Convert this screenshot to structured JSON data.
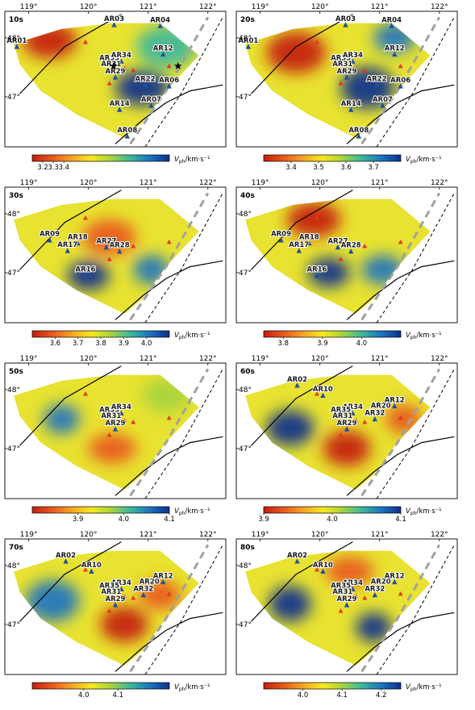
{
  "figure": {
    "lon_ticks": [
      "119°",
      "120°",
      "121°",
      "122°"
    ],
    "lat_ticks": [
      "48°",
      "47°"
    ],
    "colorbar_units": {
      "symbol": "V",
      "subscript": "ph",
      "unit": "/km·s⁻¹"
    }
  },
  "stations": {
    "AR01": [
      118.8,
      47.85
    ],
    "AR02": [
      119.62,
      48.07
    ],
    "AR03": [
      120.43,
      48.22
    ],
    "AR04": [
      121.2,
      48.2
    ],
    "AR06": [
      121.35,
      47.18
    ],
    "AR07": [
      121.05,
      46.85
    ],
    "AR08": [
      120.65,
      46.33
    ],
    "AR09": [
      119.35,
      47.55
    ],
    "AR10": [
      120.05,
      47.9
    ],
    "AR12": [
      121.25,
      47.72
    ],
    "AR14": [
      120.52,
      46.78
    ],
    "AR16": [
      119.95,
      46.95
    ],
    "AR17": [
      119.65,
      47.37
    ],
    "AR18": [
      119.82,
      47.5
    ],
    "AR20": [
      121.02,
      47.62
    ],
    "AR22": [
      120.95,
      47.2
    ],
    "AR27": [
      120.3,
      47.43
    ],
    "AR28": [
      120.52,
      47.36
    ],
    "AR29": [
      120.45,
      47.33
    ],
    "AR31": [
      120.38,
      47.45
    ],
    "AR32": [
      120.92,
      47.5
    ],
    "AR34": [
      120.55,
      47.6
    ],
    "AR35": [
      120.35,
      47.55
    ]
  },
  "event_triangles": [
    [
      119.95,
      47.93
    ],
    [
      120.75,
      47.45
    ],
    [
      121.35,
      47.52
    ],
    [
      120.6,
      47.48
    ],
    [
      120.35,
      47.23
    ]
  ],
  "chart_data": [
    {
      "type": "heatmap",
      "title": "10s",
      "stations": [
        "AR01",
        "AR03",
        "AR04",
        "AR35",
        "AR34",
        "AR12",
        "AR31",
        "AR29",
        "AR22",
        "AR06",
        "AR14",
        "AR07",
        "AR08"
      ],
      "stars": [
        [
          120.42,
          47.52
        ],
        [
          121.5,
          47.52
        ]
      ],
      "colorbar": {
        "min": 3.1,
        "max": 4.4,
        "ticks": [
          "3.2",
          "3.3",
          "3.4"
        ]
      },
      "anomalies": [
        [
          119.35,
          47.95,
          0.0,
          0.45,
          0.3
        ],
        [
          120.9,
          47.15,
          1.0,
          0.45,
          0.3
        ],
        [
          121.3,
          47.85,
          0.75,
          0.5,
          0.35
        ]
      ]
    },
    {
      "type": "heatmap",
      "title": "20s",
      "stations": [
        "AR01",
        "AR03",
        "AR04",
        "AR35",
        "AR34",
        "AR12",
        "AR31",
        "AR29",
        "AR22",
        "AR06",
        "AR14",
        "AR07",
        "AR08"
      ],
      "stars": [],
      "colorbar": {
        "min": 3.3,
        "max": 3.8,
        "ticks": [
          "3.4",
          "3.5",
          "3.6",
          "3.7"
        ]
      },
      "anomalies": [
        [
          119.6,
          47.75,
          0.0,
          0.5,
          0.35
        ],
        [
          120.8,
          47.15,
          1.0,
          0.45,
          0.35
        ],
        [
          121.25,
          48.0,
          0.85,
          0.35,
          0.25
        ]
      ]
    },
    {
      "type": "heatmap",
      "title": "30s",
      "stations": [
        "AR09",
        "AR18",
        "AR17",
        "AR27",
        "AR28",
        "AR16"
      ],
      "stars": [],
      "colorbar": {
        "min": 3.5,
        "max": 4.1,
        "ticks": [
          "3.6",
          "3.7",
          "3.8",
          "3.9",
          "4.0"
        ]
      },
      "anomalies": [
        [
          120.35,
          47.6,
          0.1,
          0.45,
          0.3
        ],
        [
          120.0,
          46.95,
          0.95,
          0.35,
          0.25
        ],
        [
          121.05,
          47.05,
          0.9,
          0.3,
          0.25
        ]
      ]
    },
    {
      "type": "heatmap",
      "title": "40s",
      "stations": [
        "AR09",
        "AR18",
        "AR17",
        "AR27",
        "AR28",
        "AR16"
      ],
      "stars": [],
      "colorbar": {
        "min": 3.75,
        "max": 4.1,
        "ticks": [
          "3.8",
          "3.9",
          "4.0"
        ]
      },
      "anomalies": [
        [
          119.9,
          47.9,
          0.05,
          0.45,
          0.3
        ],
        [
          120.15,
          47.0,
          0.95,
          0.35,
          0.25
        ],
        [
          121.05,
          47.05,
          0.9,
          0.35,
          0.25
        ]
      ]
    },
    {
      "type": "heatmap",
      "title": "50s",
      "stations": [
        "AR35",
        "AR34",
        "AR31",
        "AR29"
      ],
      "stars": [],
      "colorbar": {
        "min": 3.8,
        "max": 4.1,
        "ticks": [
          "3.9",
          "4.0",
          "4.1"
        ]
      },
      "anomalies": [
        [
          119.55,
          47.5,
          0.9,
          0.3,
          0.25
        ],
        [
          120.4,
          47.0,
          0.2,
          0.4,
          0.25
        ],
        [
          121.3,
          47.9,
          0.55,
          0.4,
          0.3
        ]
      ]
    },
    {
      "type": "heatmap",
      "title": "60s",
      "stations": [
        "AR02",
        "AR10",
        "AR20",
        "AR12",
        "AR34",
        "AR35",
        "AR31",
        "AR32",
        "AR29"
      ],
      "stars": [],
      "colorbar": {
        "min": 3.9,
        "max": 4.1,
        "ticks": [
          "3.9",
          "4.0",
          "4.1"
        ]
      },
      "anomalies": [
        [
          119.5,
          47.35,
          1.0,
          0.4,
          0.3
        ],
        [
          120.45,
          47.0,
          0.0,
          0.4,
          0.3
        ],
        [
          121.4,
          47.5,
          0.1,
          0.3,
          0.25
        ]
      ]
    },
    {
      "type": "heatmap",
      "title": "70s",
      "stations": [
        "AR02",
        "AR10",
        "AR20",
        "AR12",
        "AR34",
        "AR35",
        "AR31",
        "AR32",
        "AR29"
      ],
      "stars": [],
      "colorbar": {
        "min": 3.85,
        "max": 4.25,
        "ticks": [
          "4.0",
          "4.1"
        ]
      },
      "anomalies": [
        [
          120.6,
          47.0,
          0.0,
          0.4,
          0.3
        ],
        [
          119.4,
          47.4,
          0.8,
          0.45,
          0.35
        ],
        [
          121.2,
          47.5,
          0.1,
          0.35,
          0.25
        ]
      ]
    },
    {
      "type": "heatmap",
      "title": "80s",
      "stations": [
        "AR02",
        "AR10",
        "AR20",
        "AR12",
        "AR34",
        "AR35",
        "AR31",
        "AR32",
        "AR29"
      ],
      "stars": [],
      "colorbar": {
        "min": 3.9,
        "max": 4.25,
        "ticks": [
          "4.0",
          "4.1",
          "4.2"
        ]
      },
      "anomalies": [
        [
          119.5,
          47.35,
          1.0,
          0.35,
          0.3
        ],
        [
          120.9,
          46.95,
          0.95,
          0.3,
          0.25
        ],
        [
          120.5,
          47.9,
          0.15,
          0.4,
          0.25
        ]
      ]
    }
  ]
}
